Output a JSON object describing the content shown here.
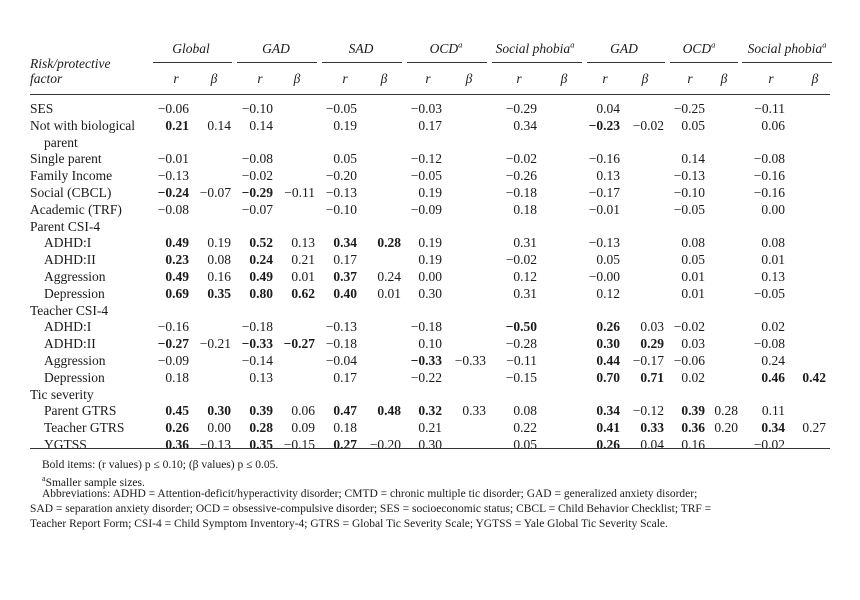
{
  "header": {
    "risk_label_line1": "Risk/protective",
    "risk_label_line2": "factor",
    "groups": [
      {
        "label": "Global",
        "sup": ""
      },
      {
        "label": "GAD",
        "sup": ""
      },
      {
        "label": "SAD",
        "sup": ""
      },
      {
        "label": "OCD",
        "sup": "a"
      },
      {
        "label": "Social phobia",
        "sup": "a"
      },
      {
        "label": "GAD",
        "sup": ""
      },
      {
        "label": "OCD",
        "sup": "a"
      },
      {
        "label": "Social phobia",
        "sup": "a"
      }
    ],
    "sub_r": "r",
    "sub_beta": "β"
  },
  "rows": [
    {
      "label": "SES",
      "indent": 0,
      "cells": [
        [
          "−0.06",
          0
        ],
        [
          "",
          0
        ],
        [
          "−0.10",
          0
        ],
        [
          "",
          0
        ],
        [
          "−0.05",
          0
        ],
        [
          "",
          0
        ],
        [
          "−0.03",
          0
        ],
        [
          "",
          0
        ],
        [
          "−0.29",
          0
        ],
        [
          "",
          0
        ],
        [
          "0.04",
          0
        ],
        [
          "",
          0
        ],
        [
          "−0.25",
          0
        ],
        [
          "",
          0
        ],
        [
          "−0.11",
          0
        ],
        [
          "",
          0
        ]
      ]
    },
    {
      "label": "Not with biological",
      "indent": 0,
      "cells": [
        [
          "0.21",
          1
        ],
        [
          "0.14",
          0
        ],
        [
          "0.14",
          0
        ],
        [
          "",
          0
        ],
        [
          "0.19",
          0
        ],
        [
          "",
          0
        ],
        [
          "0.17",
          0
        ],
        [
          "",
          0
        ],
        [
          "0.34",
          0
        ],
        [
          "",
          0
        ],
        [
          "−0.23",
          1
        ],
        [
          "−0.02",
          0
        ],
        [
          "0.05",
          0
        ],
        [
          "",
          0
        ],
        [
          "0.06",
          0
        ],
        [
          "",
          0
        ]
      ]
    },
    {
      "label": "parent",
      "indent": 1,
      "cells": []
    },
    {
      "label": "Single parent",
      "indent": 0,
      "cells": [
        [
          "−0.01",
          0
        ],
        [
          "",
          0
        ],
        [
          "−0.08",
          0
        ],
        [
          "",
          0
        ],
        [
          "0.05",
          0
        ],
        [
          "",
          0
        ],
        [
          "−0.12",
          0
        ],
        [
          "",
          0
        ],
        [
          "−0.02",
          0
        ],
        [
          "",
          0
        ],
        [
          "−0.16",
          0
        ],
        [
          "",
          0
        ],
        [
          "0.14",
          0
        ],
        [
          "",
          0
        ],
        [
          "−0.08",
          0
        ],
        [
          "",
          0
        ]
      ]
    },
    {
      "label": "Family Income",
      "indent": 0,
      "cells": [
        [
          "−0.13",
          0
        ],
        [
          "",
          0
        ],
        [
          "−0.02",
          0
        ],
        [
          "",
          0
        ],
        [
          "−0.20",
          0
        ],
        [
          "",
          0
        ],
        [
          "−0.05",
          0
        ],
        [
          "",
          0
        ],
        [
          "−0.26",
          0
        ],
        [
          "",
          0
        ],
        [
          "0.13",
          0
        ],
        [
          "",
          0
        ],
        [
          "−0.13",
          0
        ],
        [
          "",
          0
        ],
        [
          "−0.16",
          0
        ],
        [
          "",
          0
        ]
      ]
    },
    {
      "label": "Social (CBCL)",
      "indent": 0,
      "cells": [
        [
          "−0.24",
          1
        ],
        [
          "−0.07",
          0
        ],
        [
          "−0.29",
          1
        ],
        [
          "−0.11",
          0
        ],
        [
          "−0.13",
          0
        ],
        [
          "",
          0
        ],
        [
          "0.19",
          0
        ],
        [
          "",
          0
        ],
        [
          "−0.18",
          0
        ],
        [
          "",
          0
        ],
        [
          "−0.17",
          0
        ],
        [
          "",
          0
        ],
        [
          "−0.10",
          0
        ],
        [
          "",
          0
        ],
        [
          "−0.16",
          0
        ],
        [
          "",
          0
        ]
      ]
    },
    {
      "label": "Academic (TRF)",
      "indent": 0,
      "cells": [
        [
          "−0.08",
          0
        ],
        [
          "",
          0
        ],
        [
          "−0.07",
          0
        ],
        [
          "",
          0
        ],
        [
          "−0.10",
          0
        ],
        [
          "",
          0
        ],
        [
          "−0.09",
          0
        ],
        [
          "",
          0
        ],
        [
          "0.18",
          0
        ],
        [
          "",
          0
        ],
        [
          "−0.01",
          0
        ],
        [
          "",
          0
        ],
        [
          "−0.05",
          0
        ],
        [
          "",
          0
        ],
        [
          "0.00",
          0
        ],
        [
          "",
          0
        ]
      ]
    },
    {
      "label": "Parent CSI-4",
      "indent": 0,
      "cells": []
    },
    {
      "label": "ADHD:I",
      "indent": 1,
      "cells": [
        [
          "0.49",
          1
        ],
        [
          "0.19",
          0
        ],
        [
          "0.52",
          1
        ],
        [
          "0.13",
          0
        ],
        [
          "0.34",
          1
        ],
        [
          "0.28",
          1
        ],
        [
          "0.19",
          0
        ],
        [
          "",
          0
        ],
        [
          "0.31",
          0
        ],
        [
          "",
          0
        ],
        [
          "−0.13",
          0
        ],
        [
          "",
          0
        ],
        [
          "0.08",
          0
        ],
        [
          "",
          0
        ],
        [
          "0.08",
          0
        ],
        [
          "",
          0
        ]
      ]
    },
    {
      "label": "ADHD:II",
      "indent": 1,
      "cells": [
        [
          "0.23",
          1
        ],
        [
          "0.08",
          0
        ],
        [
          "0.24",
          1
        ],
        [
          "0.21",
          0
        ],
        [
          "0.17",
          0
        ],
        [
          "",
          0
        ],
        [
          "0.19",
          0
        ],
        [
          "",
          0
        ],
        [
          "−0.02",
          0
        ],
        [
          "",
          0
        ],
        [
          "0.05",
          0
        ],
        [
          "",
          0
        ],
        [
          "0.05",
          0
        ],
        [
          "",
          0
        ],
        [
          "0.01",
          0
        ],
        [
          "",
          0
        ]
      ]
    },
    {
      "label": "Aggression",
      "indent": 1,
      "cells": [
        [
          "0.49",
          1
        ],
        [
          "0.16",
          0
        ],
        [
          "0.49",
          1
        ],
        [
          "0.01",
          0
        ],
        [
          "0.37",
          1
        ],
        [
          "0.24",
          0
        ],
        [
          "0.00",
          0
        ],
        [
          "",
          0
        ],
        [
          "0.12",
          0
        ],
        [
          "",
          0
        ],
        [
          "−0.00",
          0
        ],
        [
          "",
          0
        ],
        [
          "0.01",
          0
        ],
        [
          "",
          0
        ],
        [
          "0.13",
          0
        ],
        [
          "",
          0
        ]
      ]
    },
    {
      "label": "Depression",
      "indent": 1,
      "cells": [
        [
          "0.69",
          1
        ],
        [
          "0.35",
          1
        ],
        [
          "0.80",
          1
        ],
        [
          "0.62",
          1
        ],
        [
          "0.40",
          1
        ],
        [
          "0.01",
          0
        ],
        [
          "0.30",
          0
        ],
        [
          "",
          0
        ],
        [
          "0.31",
          0
        ],
        [
          "",
          0
        ],
        [
          "0.12",
          0
        ],
        [
          "",
          0
        ],
        [
          "0.01",
          0
        ],
        [
          "",
          0
        ],
        [
          "−0.05",
          0
        ],
        [
          "",
          0
        ]
      ]
    },
    {
      "label": "Teacher CSI-4",
      "indent": 0,
      "cells": []
    },
    {
      "label": "ADHD:I",
      "indent": 1,
      "cells": [
        [
          "−0.16",
          0
        ],
        [
          "",
          0
        ],
        [
          "−0.18",
          0
        ],
        [
          "",
          0
        ],
        [
          "−0.13",
          0
        ],
        [
          "",
          0
        ],
        [
          "−0.18",
          0
        ],
        [
          "",
          0
        ],
        [
          "−0.50",
          1
        ],
        [
          "",
          0
        ],
        [
          "0.26",
          1
        ],
        [
          "0.03",
          0
        ],
        [
          "−0.02",
          0
        ],
        [
          "",
          0
        ],
        [
          "0.02",
          0
        ],
        [
          "",
          0
        ]
      ]
    },
    {
      "label": "ADHD:II",
      "indent": 1,
      "cells": [
        [
          "−0.27",
          1
        ],
        [
          "−0.21",
          0
        ],
        [
          "−0.33",
          1
        ],
        [
          "−0.27",
          1
        ],
        [
          "−0.18",
          0
        ],
        [
          "",
          0
        ],
        [
          "0.10",
          0
        ],
        [
          "",
          0
        ],
        [
          "−0.28",
          0
        ],
        [
          "",
          0
        ],
        [
          "0.30",
          1
        ],
        [
          "0.29",
          1
        ],
        [
          "0.03",
          0
        ],
        [
          "",
          0
        ],
        [
          "−0.08",
          0
        ],
        [
          "",
          0
        ]
      ]
    },
    {
      "label": "Aggression",
      "indent": 1,
      "cells": [
        [
          "−0.09",
          0
        ],
        [
          "",
          0
        ],
        [
          "−0.14",
          0
        ],
        [
          "",
          0
        ],
        [
          "−0.04",
          0
        ],
        [
          "",
          0
        ],
        [
          "−0.33",
          1
        ],
        [
          "−0.33",
          0
        ],
        [
          "−0.11",
          0
        ],
        [
          "",
          0
        ],
        [
          "0.44",
          1
        ],
        [
          "−0.17",
          0
        ],
        [
          "−0.06",
          0
        ],
        [
          "",
          0
        ],
        [
          "0.24",
          0
        ],
        [
          "",
          0
        ]
      ]
    },
    {
      "label": "Depression",
      "indent": 1,
      "cells": [
        [
          "0.18",
          0
        ],
        [
          "",
          0
        ],
        [
          "0.13",
          0
        ],
        [
          "",
          0
        ],
        [
          "0.17",
          0
        ],
        [
          "",
          0
        ],
        [
          "−0.22",
          0
        ],
        [
          "",
          0
        ],
        [
          "−0.15",
          0
        ],
        [
          "",
          0
        ],
        [
          "0.70",
          1
        ],
        [
          "0.71",
          1
        ],
        [
          "0.02",
          0
        ],
        [
          "",
          0
        ],
        [
          "0.46",
          1
        ],
        [
          "0.42",
          1
        ]
      ]
    },
    {
      "label": "Tic severity",
      "indent": 0,
      "cells": []
    },
    {
      "label": "Parent GTRS",
      "indent": 1,
      "cells": [
        [
          "0.45",
          1
        ],
        [
          "0.30",
          1
        ],
        [
          "0.39",
          1
        ],
        [
          "0.06",
          0
        ],
        [
          "0.47",
          1
        ],
        [
          "0.48",
          1
        ],
        [
          "0.32",
          1
        ],
        [
          "0.33",
          0
        ],
        [
          "0.08",
          0
        ],
        [
          "",
          0
        ],
        [
          "0.34",
          1
        ],
        [
          "−0.12",
          0
        ],
        [
          "0.39",
          1
        ],
        [
          "0.28",
          0
        ],
        [
          "0.11",
          0
        ],
        [
          "",
          0
        ]
      ]
    },
    {
      "label": "Teacher GTRS",
      "indent": 1,
      "cells": [
        [
          "0.26",
          1
        ],
        [
          "0.00",
          0
        ],
        [
          "0.28",
          1
        ],
        [
          "0.09",
          0
        ],
        [
          "0.18",
          0
        ],
        [
          "",
          0
        ],
        [
          "0.21",
          0
        ],
        [
          "",
          0
        ],
        [
          "0.22",
          0
        ],
        [
          "",
          0
        ],
        [
          "0.41",
          1
        ],
        [
          "0.33",
          1
        ],
        [
          "0.36",
          1
        ],
        [
          "0.20",
          0
        ],
        [
          "0.34",
          1
        ],
        [
          "0.27",
          0
        ]
      ]
    },
    {
      "label": "YGTSS",
      "indent": 1,
      "cells": [
        [
          "0.36",
          1
        ],
        [
          "−0.13",
          0
        ],
        [
          "0.35",
          1
        ],
        [
          "−0.15",
          0
        ],
        [
          "0.27",
          1
        ],
        [
          "−0.20",
          0
        ],
        [
          "0.30",
          0
        ],
        [
          "",
          0
        ],
        [
          "0.05",
          0
        ],
        [
          "",
          0
        ],
        [
          "0.26",
          1
        ],
        [
          "0.04",
          0
        ],
        [
          "0.16",
          0
        ],
        [
          "",
          0
        ],
        [
          "−0.02",
          0
        ],
        [
          "",
          0
        ]
      ]
    }
  ],
  "footnotes": {
    "bold_note": "Bold items: (r values) p ≤ 0.10; (β values) p ≤ 0.05.",
    "sup_a": "a",
    "smaller": "Smaller sample sizes.",
    "abbrev1": "Abbreviations: ADHD = Attention-deficit/hyperactivity disorder; CMTD = chronic multiple tic disorder; GAD = generalized anxiety disorder;",
    "abbrev2": "SAD = separation anxiety disorder; OCD = obsessive-compulsive disorder; SES = socioeconomic status; CBCL = Child Behavior Checklist; TRF =",
    "abbrev3": "Teacher Report Form; CSI-4 = Child Symptom Inventory-4; GTRS = Global Tic Severity Scale; YGTSS = Yale Global Tic Severity Scale."
  }
}
